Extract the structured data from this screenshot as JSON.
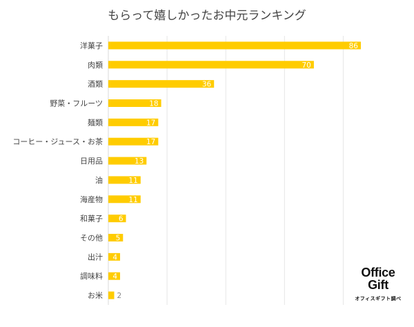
{
  "chart_data": {
    "type": "bar",
    "orientation": "horizontal",
    "title": "もらって嬉しかったお中元ランキング",
    "categories": [
      "洋菓子",
      "肉類",
      "酒類",
      "野菜・フルーツ",
      "麺類",
      "コーヒー・ジュース・お茶",
      "日用品",
      "油",
      "海産物",
      "和菓子",
      "その他",
      "出汁",
      "調味料",
      "お米"
    ],
    "values": [
      86,
      70,
      36,
      18,
      17,
      17,
      13,
      11,
      11,
      6,
      5,
      4,
      4,
      2
    ],
    "xlim": [
      0,
      90
    ],
    "gridlines": [
      20,
      40,
      60,
      80
    ],
    "grid": true,
    "bar_color": "#FFCC00",
    "label_color": "#ffffff",
    "small_label_color": "#888888"
  },
  "logo": {
    "line1": "Office",
    "line2": "Gift",
    "caption": "オフィスギフト調べ"
  }
}
